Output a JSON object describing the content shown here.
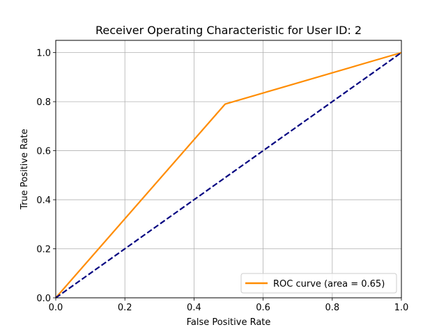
{
  "chart_data": {
    "type": "line",
    "title": "Receiver Operating Characteristic for User ID: 2",
    "xlabel": "False Positive Rate",
    "ylabel": "True Positive Rate",
    "xlim": [
      0.0,
      1.0
    ],
    "ylim": [
      0.0,
      1.05
    ],
    "x_ticks": [
      0.0,
      0.2,
      0.4,
      0.6,
      0.8,
      1.0
    ],
    "y_ticks": [
      0.0,
      0.2,
      0.4,
      0.6,
      0.8,
      1.0
    ],
    "x_tick_labels": [
      "0.0",
      "0.2",
      "0.4",
      "0.6",
      "0.8",
      "1.0"
    ],
    "y_tick_labels": [
      "0.0",
      "0.2",
      "0.4",
      "0.6",
      "0.8",
      "1.0"
    ],
    "grid": true,
    "legend_position": "lower-right",
    "series": [
      {
        "name": "ROC curve (area = 0.65)",
        "color": "#ff8c00",
        "style": "solid",
        "x": [
          0.0,
          0.49,
          1.0
        ],
        "y": [
          0.0,
          0.79,
          1.0
        ]
      },
      {
        "color": "#000080",
        "style": "dashed",
        "x": [
          0.0,
          1.0
        ],
        "y": [
          0.0,
          1.0
        ]
      }
    ]
  }
}
